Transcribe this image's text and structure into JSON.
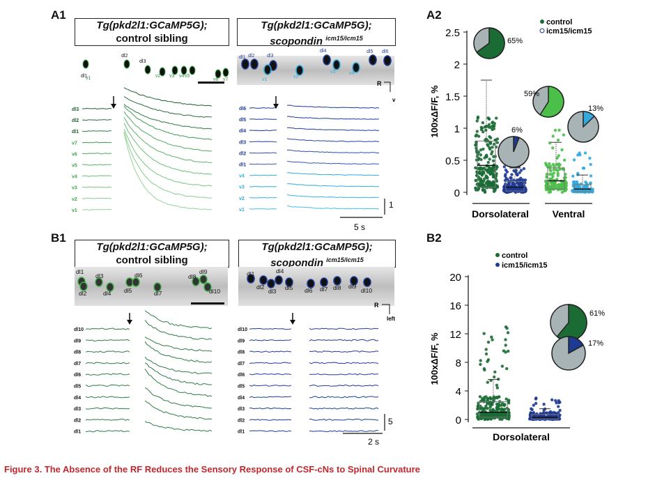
{
  "panels": {
    "a1": "A1",
    "a2": "A2",
    "b1": "B1",
    "b2": "B2"
  },
  "a1": {
    "left_title_line1": "Tg(pkd2l1:GCaMP5G);",
    "left_title_line2": "control sibling",
    "right_title_line1": "Tg(pkd2l1:GCaMP5G);",
    "right_title_line2": "scopondin",
    "right_title_sup": "icm15/icm15",
    "left_cell_labels": [
      "dl1",
      "v1",
      "dl2",
      "dl3",
      "v2",
      "v3",
      "v4",
      "v5",
      "v6",
      "v7"
    ],
    "right_cell_labels": [
      "dl1",
      "dl2",
      "dl3",
      "v1",
      "v2",
      "dl4",
      "v3",
      "v4",
      "dl5",
      "dl6"
    ],
    "left_traces": [
      "dl3",
      "dl2",
      "dl1",
      "v7",
      "v6",
      "v5",
      "v4",
      "v3",
      "v2",
      "v1"
    ],
    "right_traces": [
      "dl6",
      "dl5",
      "dl4",
      "dl3",
      "dl2",
      "dl1",
      "v4",
      "v3",
      "v2",
      "v1"
    ],
    "orient_r": "R",
    "orient_v": "v",
    "scale_y": "1",
    "scale_x": "5 s"
  },
  "b1": {
    "left_title_line1": "Tg(pkd2l1:GCaMP5G);",
    "left_title_line2": "control sibling",
    "right_title_line1": "Tg(pkd2l1:GCaMP5G);",
    "right_title_line2": "scopondin",
    "right_title_sup": "icm15/icm15",
    "left_cell_labels": [
      "dl1",
      "dl2",
      "dl3",
      "dl4",
      "dl5",
      "dl6",
      "dl7",
      "dl8",
      "dl9",
      "dl10"
    ],
    "right_cell_labels": [
      "dl1",
      "dl2",
      "dl3",
      "dl4",
      "dl5",
      "dl6",
      "dl7",
      "dl8",
      "dl9",
      "dl10"
    ],
    "traces": [
      "dl10",
      "dl9",
      "dl8",
      "dl7",
      "dl6",
      "dl5",
      "dl4",
      "dl3",
      "dl2",
      "dl1"
    ],
    "orient_r": "R",
    "orient_left": "left",
    "scale_y": "5",
    "scale_x": "2 s"
  },
  "chart_data": [
    {
      "type": "scatter",
      "id": "A2",
      "ylabel": "100xΔF/F, %",
      "ylim": [
        0,
        2.5
      ],
      "yticks": [
        "0",
        "0.5",
        "1",
        "1.5",
        "2",
        "2.5"
      ],
      "categories": [
        "Dorsolateral",
        "Ventral"
      ],
      "legend": [
        "control",
        "icm15/icm15"
      ],
      "colors": {
        "control_dl": "#1b6b35",
        "mutant_dl": "#1f3a93",
        "control_v": "#4cbf4a",
        "mutant_v": "#33aadd",
        "pie_bg": "#a8b3b5"
      },
      "boxes": [
        {
          "group": "Dorsolateral",
          "series": "control",
          "median": 0.42,
          "q1": 0.08,
          "q3": 0.8,
          "min": 0.0,
          "max": 1.75
        },
        {
          "group": "Dorsolateral",
          "series": "icm15/icm15",
          "median": 0.08,
          "q1": 0.02,
          "q3": 0.17,
          "min": 0.0,
          "max": 0.38
        },
        {
          "group": "Ventral",
          "series": "control",
          "median": 0.18,
          "q1": 0.05,
          "q3": 0.38,
          "min": 0.0,
          "max": 0.78
        },
        {
          "group": "Ventral",
          "series": "icm15/icm15",
          "median": 0.05,
          "q1": 0.01,
          "q3": 0.12,
          "min": 0.0,
          "max": 0.27
        }
      ],
      "pies": [
        {
          "group": "Dorsolateral",
          "series": "control",
          "percent": 65,
          "label": "65%"
        },
        {
          "group": "Dorsolateral",
          "series": "icm15/icm15",
          "percent": 6,
          "label": "6%"
        },
        {
          "group": "Ventral",
          "series": "control",
          "percent": 59,
          "label": "59%"
        },
        {
          "group": "Ventral",
          "series": "icm15/icm15",
          "percent": 13,
          "label": "13%"
        }
      ]
    },
    {
      "type": "scatter",
      "id": "B2",
      "ylabel": "100xΔF/F, %",
      "ylim": [
        0,
        20
      ],
      "yticks": [
        "0",
        "4",
        "8",
        "12",
        "16",
        "20"
      ],
      "categories": [
        "Dorsolateral"
      ],
      "legend": [
        "control",
        "icm15/icm15"
      ],
      "colors": {
        "control": "#1b6b35",
        "mutant": "#1f3a93",
        "pie_bg": "#a8b3b5"
      },
      "boxes": [
        {
          "series": "control",
          "median": 1.0,
          "q1": 0.3,
          "q3": 2.5,
          "min": 0.0,
          "max": 5.6
        },
        {
          "series": "icm15/icm15",
          "median": 0.3,
          "q1": 0.05,
          "q3": 0.7,
          "min": 0.0,
          "max": 1.5
        }
      ],
      "pies": [
        {
          "series": "control",
          "percent": 61,
          "label": "61%"
        },
        {
          "series": "icm15/icm15",
          "percent": 17,
          "label": "17%"
        }
      ]
    }
  ],
  "caption": "Figure 3.  The Absence of the RF Reduces the Sensory Response of CSF-cNs to Spinal Curvature"
}
